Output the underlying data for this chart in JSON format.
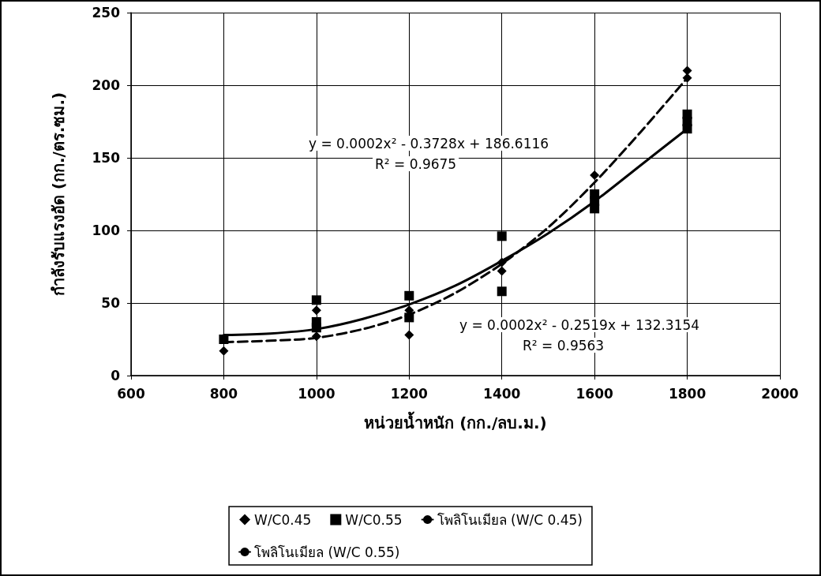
{
  "chart_data": {
    "type": "scatter",
    "xlabel": "หน่วยน้ำหนัก (กก./ลบ.ม.)",
    "ylabel": "กำลังรับแรงอัด (กก./ตร.ซม.)",
    "xlim": [
      600,
      2000
    ],
    "xticks": [
      600,
      800,
      1000,
      1200,
      1400,
      1600,
      1800,
      2000
    ],
    "ylim": [
      0,
      250
    ],
    "yticks": [
      0,
      50,
      100,
      150,
      200,
      250
    ],
    "grid": true,
    "legend": "bottom",
    "series": [
      {
        "name": "W/C0.45",
        "type": "scatter",
        "marker": "diamond",
        "color": "#000000",
        "x": [
          800,
          1000,
          1000,
          1200,
          1200,
          1400,
          1400,
          1600,
          1800,
          1800
        ],
        "values": [
          17,
          27,
          45,
          28,
          45,
          72,
          78,
          138,
          205,
          210
        ]
      },
      {
        "name": "W/C0.55",
        "type": "scatter",
        "marker": "square",
        "color": "#000000",
        "x": [
          800,
          1000,
          1000,
          1000,
          1200,
          1200,
          1400,
          1400,
          1600,
          1600,
          1600,
          1800,
          1800,
          1800
        ],
        "values": [
          25,
          33,
          37,
          52,
          40,
          55,
          58,
          96,
          115,
          120,
          125,
          170,
          175,
          180
        ]
      },
      {
        "name": "โพลิโนเมียล (W/C 0.45)",
        "type": "line",
        "marker": "none",
        "line_style": "dashed",
        "color": "#000000",
        "x": [
          800,
          900,
          1000,
          1100,
          1200,
          1300,
          1400,
          1500,
          1600,
          1700,
          1800
        ],
        "values": [
          23,
          24,
          26,
          32,
          42,
          57,
          77,
          102,
          133,
          168,
          205
        ]
      },
      {
        "name": "โพลิโนเมียล (W/C 0.55)",
        "type": "line",
        "marker": "none",
        "line_style": "solid",
        "color": "#000000",
        "x": [
          800,
          900,
          1000,
          1100,
          1200,
          1300,
          1400,
          1500,
          1600,
          1700,
          1800
        ],
        "values": [
          28,
          29,
          32,
          39,
          49,
          62,
          79,
          98,
          120,
          145,
          170
        ]
      }
    ],
    "annotations": [
      "y = 0.0002x² - 0.3728x + 186.6116",
      "R² = 0.9675",
      "y = 0.0002x² - 0.2519x + 132.3154",
      "R² = 0.9563"
    ]
  }
}
